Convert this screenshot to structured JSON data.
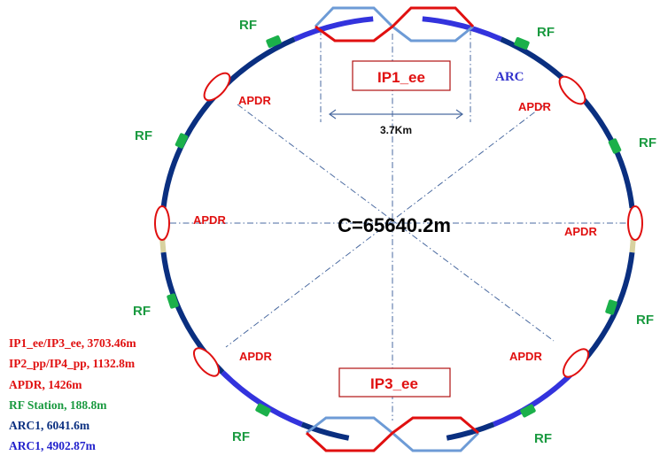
{
  "colors": {
    "arc_dark": "#0a2f80",
    "arc_bright": "#3333dd",
    "rf_station": "#1bb04a",
    "apdr": "#e01010",
    "ir_red": "#e01010",
    "ir_blue": "#6d9bd6",
    "straight": "#d8d2a0",
    "guide_line": "#4a6aa0",
    "label_green": "#1a9a40",
    "label_red": "#e01010",
    "label_blue": "#3333cc",
    "legend_dark": "#0a2f80",
    "legend_blue": "#2222cc"
  },
  "labels": {
    "circumference": "C=65640.2m",
    "ip_top": "IP1_ee",
    "ip_bottom": "IP3_ee",
    "straight_length": "3.7Km",
    "arc": "ARC",
    "apdr": "APDR",
    "rf": "RF"
  },
  "legend": [
    {
      "text": "IP1_ee/IP3_ee,  3703.46m",
      "color_key": "label_red"
    },
    {
      "text": "IP2_pp/IP4_pp, 1132.8m",
      "color_key": "label_red"
    },
    {
      "text": "APDR,  1426m",
      "color_key": "label_red"
    },
    {
      "text": "RF Station, 188.8m",
      "color_key": "label_green"
    },
    {
      "text": "ARC1,  6041.6m",
      "color_key": "legend_dark"
    },
    {
      "text": "ARC1,  4902.87m",
      "color_key": "legend_blue"
    }
  ]
}
